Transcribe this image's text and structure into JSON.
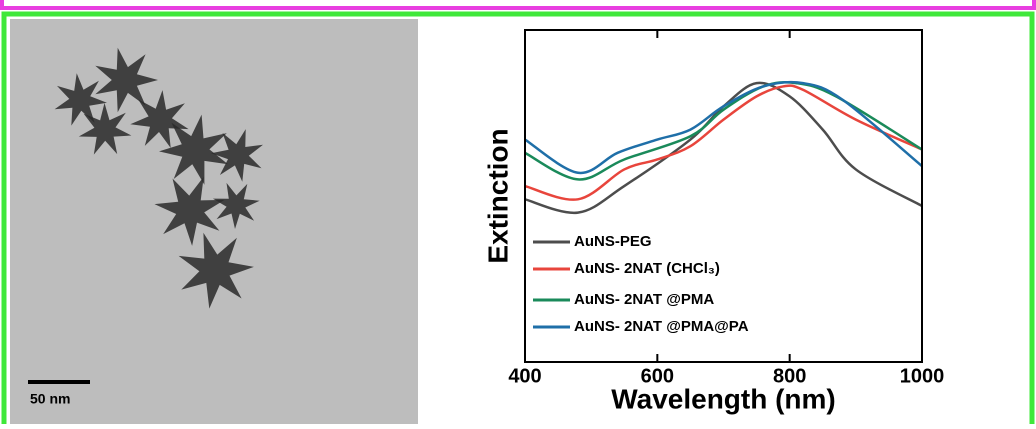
{
  "scale_bar": "50 nm",
  "chart_data": {
    "type": "line",
    "xlabel": "Wavelength (nm)",
    "ylabel": "Extinction",
    "xlim": [
      400,
      1000
    ],
    "xticks": [
      400,
      600,
      800,
      1000
    ],
    "ylim": [
      0,
      1
    ],
    "series": [
      {
        "name": "AuNS-PEG",
        "color": "#4d4d4d",
        "x": [
          400,
          480,
          550,
          650,
          700,
          750,
          800,
          850,
          900,
          1000
        ],
        "values": [
          0.49,
          0.45,
          0.53,
          0.67,
          0.77,
          0.84,
          0.8,
          0.7,
          0.58,
          0.47
        ]
      },
      {
        "name": "AuNS- 2NAT (CHCl₃)",
        "color": "#e8453c",
        "x": [
          400,
          480,
          550,
          600,
          650,
          700,
          750,
          790,
          820,
          900,
          1000
        ],
        "values": [
          0.53,
          0.49,
          0.58,
          0.61,
          0.65,
          0.73,
          0.8,
          0.83,
          0.82,
          0.73,
          0.64
        ]
      },
      {
        "name": "AuNS- 2NAT @PMA",
        "color": "#1a8a5a",
        "x": [
          400,
          480,
          550,
          650,
          700,
          760,
          810,
          870,
          1000
        ],
        "values": [
          0.63,
          0.55,
          0.61,
          0.68,
          0.76,
          0.83,
          0.84,
          0.8,
          0.64
        ]
      },
      {
        "name": "AuNS- 2NAT @PMA@PA",
        "color": "#1f6fa8",
        "x": [
          400,
          480,
          540,
          600,
          650,
          700,
          760,
          820,
          880,
          1000
        ],
        "values": [
          0.67,
          0.57,
          0.63,
          0.67,
          0.7,
          0.77,
          0.83,
          0.84,
          0.79,
          0.59
        ]
      }
    ]
  }
}
